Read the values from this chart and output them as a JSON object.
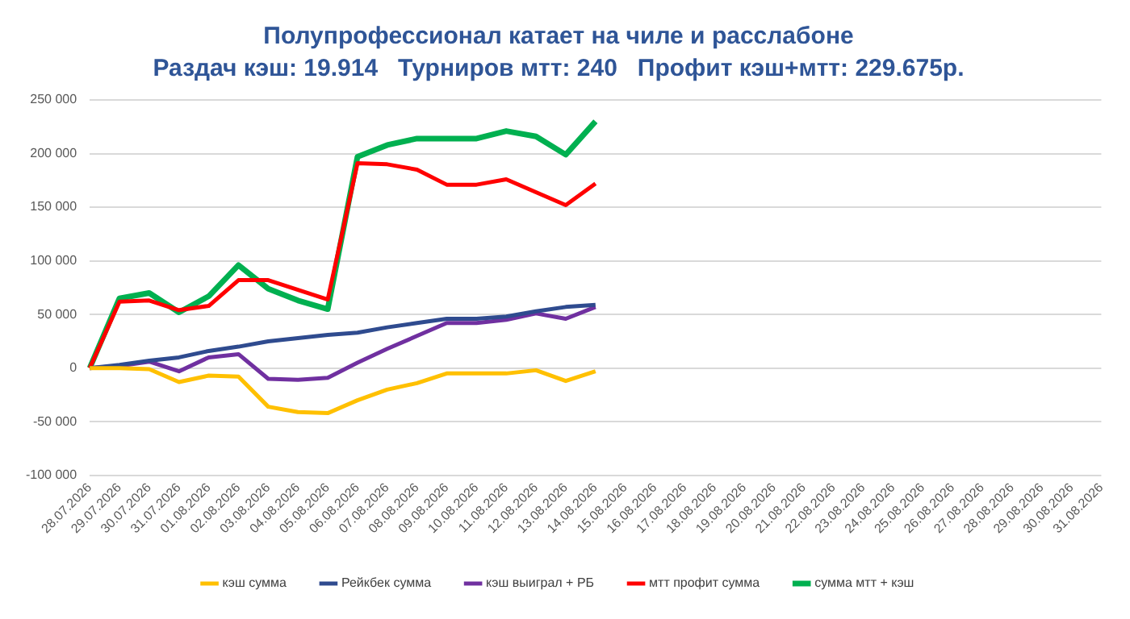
{
  "chart_data": {
    "type": "line",
    "title": "Полупрофессионал катает на чиле и расслабоне",
    "subtitle": "Раздач кэш: 19.914   Турниров мтт: 240   Профит кэш+мтт: 229.675р.",
    "categories": [
      "28.07.2026",
      "29.07.2026",
      "30.07.2026",
      "31.07.2026",
      "01.08.2026",
      "02.08.2026",
      "03.08.2026",
      "04.08.2026",
      "05.08.2026",
      "06.08.2026",
      "07.08.2026",
      "08.08.2026",
      "09.08.2026",
      "10.08.2026",
      "11.08.2026",
      "12.08.2026",
      "13.08.2026",
      "14.08.2026",
      "15.08.2026",
      "16.08.2026",
      "17.08.2026",
      "18.08.2026",
      "19.08.2026",
      "20.08.2026",
      "21.08.2026",
      "22.08.2026",
      "23.08.2026",
      "24.08.2026",
      "25.08.2026",
      "26.08.2026",
      "27.08.2026",
      "28.08.2026",
      "29.08.2026",
      "30.08.2026",
      "31.08.2026"
    ],
    "series": [
      {
        "name": "кэш сумма",
        "color": "#ffc000",
        "values": [
          0,
          0,
          -1000,
          -13000,
          -7000,
          -8000,
          -36000,
          -41000,
          -42000,
          -30000,
          -20000,
          -14000,
          -5000,
          -5000,
          -5000,
          -2000,
          -12000,
          -3000,
          null,
          null,
          null,
          null,
          null,
          null,
          null,
          null,
          null,
          null,
          null,
          null,
          null,
          null,
          null,
          null,
          null
        ]
      },
      {
        "name": "Рейкбек сумма",
        "color": "#2f4b8f",
        "values": [
          0,
          3000,
          7000,
          10000,
          16000,
          20000,
          25000,
          28000,
          31000,
          33000,
          38000,
          42000,
          46000,
          46000,
          48000,
          53000,
          57000,
          59000,
          null,
          null,
          null,
          null,
          null,
          null,
          null,
          null,
          null,
          null,
          null,
          null,
          null,
          null,
          null,
          null,
          null
        ]
      },
      {
        "name": "кэш выиграл + РБ",
        "color": "#7030a0",
        "values": [
          0,
          2000,
          6000,
          -3000,
          10000,
          13000,
          -10000,
          -11000,
          -9000,
          5000,
          18000,
          30000,
          42000,
          42000,
          45000,
          51000,
          46000,
          57000,
          null,
          null,
          null,
          null,
          null,
          null,
          null,
          null,
          null,
          null,
          null,
          null,
          null,
          null,
          null,
          null,
          null
        ]
      },
      {
        "name": "мтт профит сумма",
        "color": "#ff0000",
        "values": [
          0,
          62000,
          63000,
          54000,
          58000,
          82000,
          82000,
          73000,
          64000,
          191000,
          190000,
          185000,
          171000,
          171000,
          176000,
          164000,
          152000,
          172000,
          null,
          null,
          null,
          null,
          null,
          null,
          null,
          null,
          null,
          null,
          null,
          null,
          null,
          null,
          null,
          null,
          null
        ]
      },
      {
        "name": "сумма мтт + кэш",
        "color": "#00b050",
        "values": [
          0,
          65000,
          70000,
          52000,
          67000,
          96000,
          74000,
          63000,
          55000,
          197000,
          208000,
          214000,
          214000,
          214000,
          221000,
          216000,
          199000,
          230000,
          null,
          null,
          null,
          null,
          null,
          null,
          null,
          null,
          null,
          null,
          null,
          null,
          null,
          null,
          null,
          null,
          null
        ]
      }
    ],
    "ylim": [
      -100000,
      250000
    ],
    "yticks": [
      {
        "value": -100000,
        "label": "-100 000"
      },
      {
        "value": -50000,
        "label": "-50 000"
      },
      {
        "value": 0,
        "label": "0"
      },
      {
        "value": 50000,
        "label": "50 000"
      },
      {
        "value": 100000,
        "label": "100 000"
      },
      {
        "value": 150000,
        "label": "150 000"
      },
      {
        "value": 200000,
        "label": "200 000"
      },
      {
        "value": 250000,
        "label": "250 000"
      }
    ],
    "grid": "y",
    "legend": "bottom",
    "marker": "none",
    "line_style": "solid"
  }
}
